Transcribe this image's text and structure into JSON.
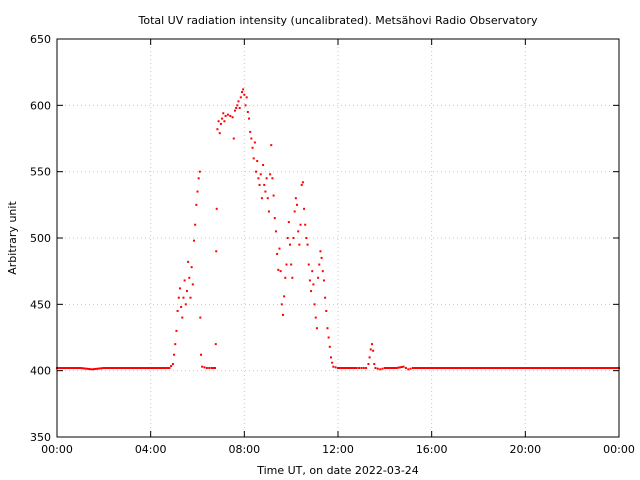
{
  "chart_data": {
    "type": "scatter",
    "title": "Total UV radiation intensity (uncalibrated). Metsähovi Radio Observatory",
    "xlabel": "Time UT, on date 2022-03-24",
    "ylabel": "Arbitrary unit",
    "xlim": [
      0,
      24
    ],
    "ylim": [
      350,
      650
    ],
    "x_ticks": [
      0,
      4,
      8,
      12,
      16,
      20,
      24
    ],
    "x_tick_labels": [
      "00:00",
      "04:00",
      "08:00",
      "12:00",
      "16:00",
      "20:00",
      "00:00"
    ],
    "y_ticks": [
      350,
      400,
      450,
      500,
      550,
      600,
      650
    ],
    "y_tick_labels": [
      "350",
      "400",
      "450",
      "500",
      "550",
      "600",
      "650"
    ],
    "grid": true,
    "marker_color": "#ff0000",
    "series": [
      {
        "points": [
          [
            0.0,
            402
          ],
          [
            0.5,
            402
          ],
          [
            1.0,
            402
          ],
          [
            1.5,
            401
          ],
          [
            2.0,
            402
          ],
          [
            2.5,
            402
          ],
          [
            3.0,
            402
          ],
          [
            3.5,
            402
          ],
          [
            4.0,
            402
          ],
          [
            4.5,
            402
          ],
          [
            4.8,
            402
          ],
          [
            4.95,
            405
          ],
          [
            5.0,
            412
          ],
          [
            5.05,
            420
          ],
          [
            5.1,
            430
          ],
          [
            5.15,
            445
          ],
          [
            5.2,
            455
          ],
          [
            5.25,
            462
          ],
          [
            5.3,
            448
          ],
          [
            5.35,
            440
          ],
          [
            5.4,
            455
          ],
          [
            5.45,
            468
          ],
          [
            5.5,
            450
          ],
          [
            5.55,
            460
          ],
          [
            5.6,
            482
          ],
          [
            5.65,
            470
          ],
          [
            5.7,
            455
          ],
          [
            5.75,
            478
          ],
          [
            5.8,
            465
          ],
          [
            5.85,
            498
          ],
          [
            5.9,
            510
          ],
          [
            5.95,
            525
          ],
          [
            6.0,
            535
          ],
          [
            6.05,
            545
          ],
          [
            6.1,
            550
          ],
          [
            6.12,
            440
          ],
          [
            6.15,
            412
          ],
          [
            6.2,
            403
          ],
          [
            6.4,
            402
          ],
          [
            6.6,
            402
          ],
          [
            6.75,
            402
          ],
          [
            6.78,
            420
          ],
          [
            6.8,
            490
          ],
          [
            6.82,
            522
          ],
          [
            6.85,
            582
          ],
          [
            6.9,
            588
          ],
          [
            6.95,
            579
          ],
          [
            7.0,
            586
          ],
          [
            7.05,
            590
          ],
          [
            7.1,
            594
          ],
          [
            7.15,
            588
          ],
          [
            7.2,
            592
          ],
          [
            7.3,
            593
          ],
          [
            7.4,
            592
          ],
          [
            7.5,
            591
          ],
          [
            7.55,
            575
          ],
          [
            7.6,
            596
          ],
          [
            7.65,
            598
          ],
          [
            7.7,
            600
          ],
          [
            7.75,
            603
          ],
          [
            7.8,
            598
          ],
          [
            7.85,
            606
          ],
          [
            7.9,
            610
          ],
          [
            7.95,
            612
          ],
          [
            8.0,
            608
          ],
          [
            8.05,
            600
          ],
          [
            8.1,
            606
          ],
          [
            8.15,
            595
          ],
          [
            8.2,
            590
          ],
          [
            8.25,
            580
          ],
          [
            8.3,
            575
          ],
          [
            8.35,
            568
          ],
          [
            8.4,
            560
          ],
          [
            8.45,
            572
          ],
          [
            8.5,
            550
          ],
          [
            8.55,
            558
          ],
          [
            8.6,
            545
          ],
          [
            8.65,
            540
          ],
          [
            8.7,
            548
          ],
          [
            8.75,
            530
          ],
          [
            8.8,
            555
          ],
          [
            8.85,
            540
          ],
          [
            8.9,
            535
          ],
          [
            8.95,
            545
          ],
          [
            9.0,
            530
          ],
          [
            9.05,
            520
          ],
          [
            9.1,
            548
          ],
          [
            9.15,
            570
          ],
          [
            9.2,
            545
          ],
          [
            9.25,
            532
          ],
          [
            9.3,
            515
          ],
          [
            9.35,
            505
          ],
          [
            9.4,
            488
          ],
          [
            9.45,
            476
          ],
          [
            9.5,
            492
          ],
          [
            9.55,
            475
          ],
          [
            9.6,
            450
          ],
          [
            9.65,
            442
          ],
          [
            9.7,
            456
          ],
          [
            9.75,
            470
          ],
          [
            9.8,
            480
          ],
          [
            9.85,
            500
          ],
          [
            9.9,
            512
          ],
          [
            9.95,
            495
          ],
          [
            10.0,
            480
          ],
          [
            10.05,
            470
          ],
          [
            10.1,
            500
          ],
          [
            10.15,
            520
          ],
          [
            10.2,
            530
          ],
          [
            10.25,
            525
          ],
          [
            10.3,
            505
          ],
          [
            10.35,
            495
          ],
          [
            10.4,
            510
          ],
          [
            10.45,
            540
          ],
          [
            10.5,
            542
          ],
          [
            10.55,
            522
          ],
          [
            10.6,
            510
          ],
          [
            10.65,
            500
          ],
          [
            10.7,
            495
          ],
          [
            10.75,
            480
          ],
          [
            10.8,
            468
          ],
          [
            10.85,
            460
          ],
          [
            10.9,
            475
          ],
          [
            10.95,
            465
          ],
          [
            11.0,
            450
          ],
          [
            11.05,
            440
          ],
          [
            11.1,
            432
          ],
          [
            11.15,
            470
          ],
          [
            11.2,
            480
          ],
          [
            11.25,
            490
          ],
          [
            11.3,
            485
          ],
          [
            11.35,
            475
          ],
          [
            11.4,
            468
          ],
          [
            11.45,
            455
          ],
          [
            11.5,
            445
          ],
          [
            11.55,
            432
          ],
          [
            11.6,
            425
          ],
          [
            11.65,
            418
          ],
          [
            11.7,
            410
          ],
          [
            11.75,
            406
          ],
          [
            11.8,
            403
          ],
          [
            12.0,
            402
          ],
          [
            12.5,
            402
          ],
          [
            12.8,
            402
          ],
          [
            13.0,
            402
          ],
          [
            13.2,
            402
          ],
          [
            13.3,
            405
          ],
          [
            13.35,
            410
          ],
          [
            13.4,
            416
          ],
          [
            13.45,
            420
          ],
          [
            13.5,
            415
          ],
          [
            13.55,
            405
          ],
          [
            13.6,
            402
          ],
          [
            13.8,
            401
          ],
          [
            14.0,
            402
          ],
          [
            14.5,
            402
          ],
          [
            14.8,
            403
          ],
          [
            15.0,
            401
          ],
          [
            15.2,
            402
          ],
          [
            15.5,
            402
          ],
          [
            16.0,
            402
          ],
          [
            17.0,
            402
          ],
          [
            18.0,
            402
          ],
          [
            19.0,
            402
          ],
          [
            20.0,
            402
          ],
          [
            21.0,
            402
          ],
          [
            22.0,
            402
          ],
          [
            23.0,
            402
          ],
          [
            24.0,
            402
          ]
        ]
      }
    ]
  }
}
